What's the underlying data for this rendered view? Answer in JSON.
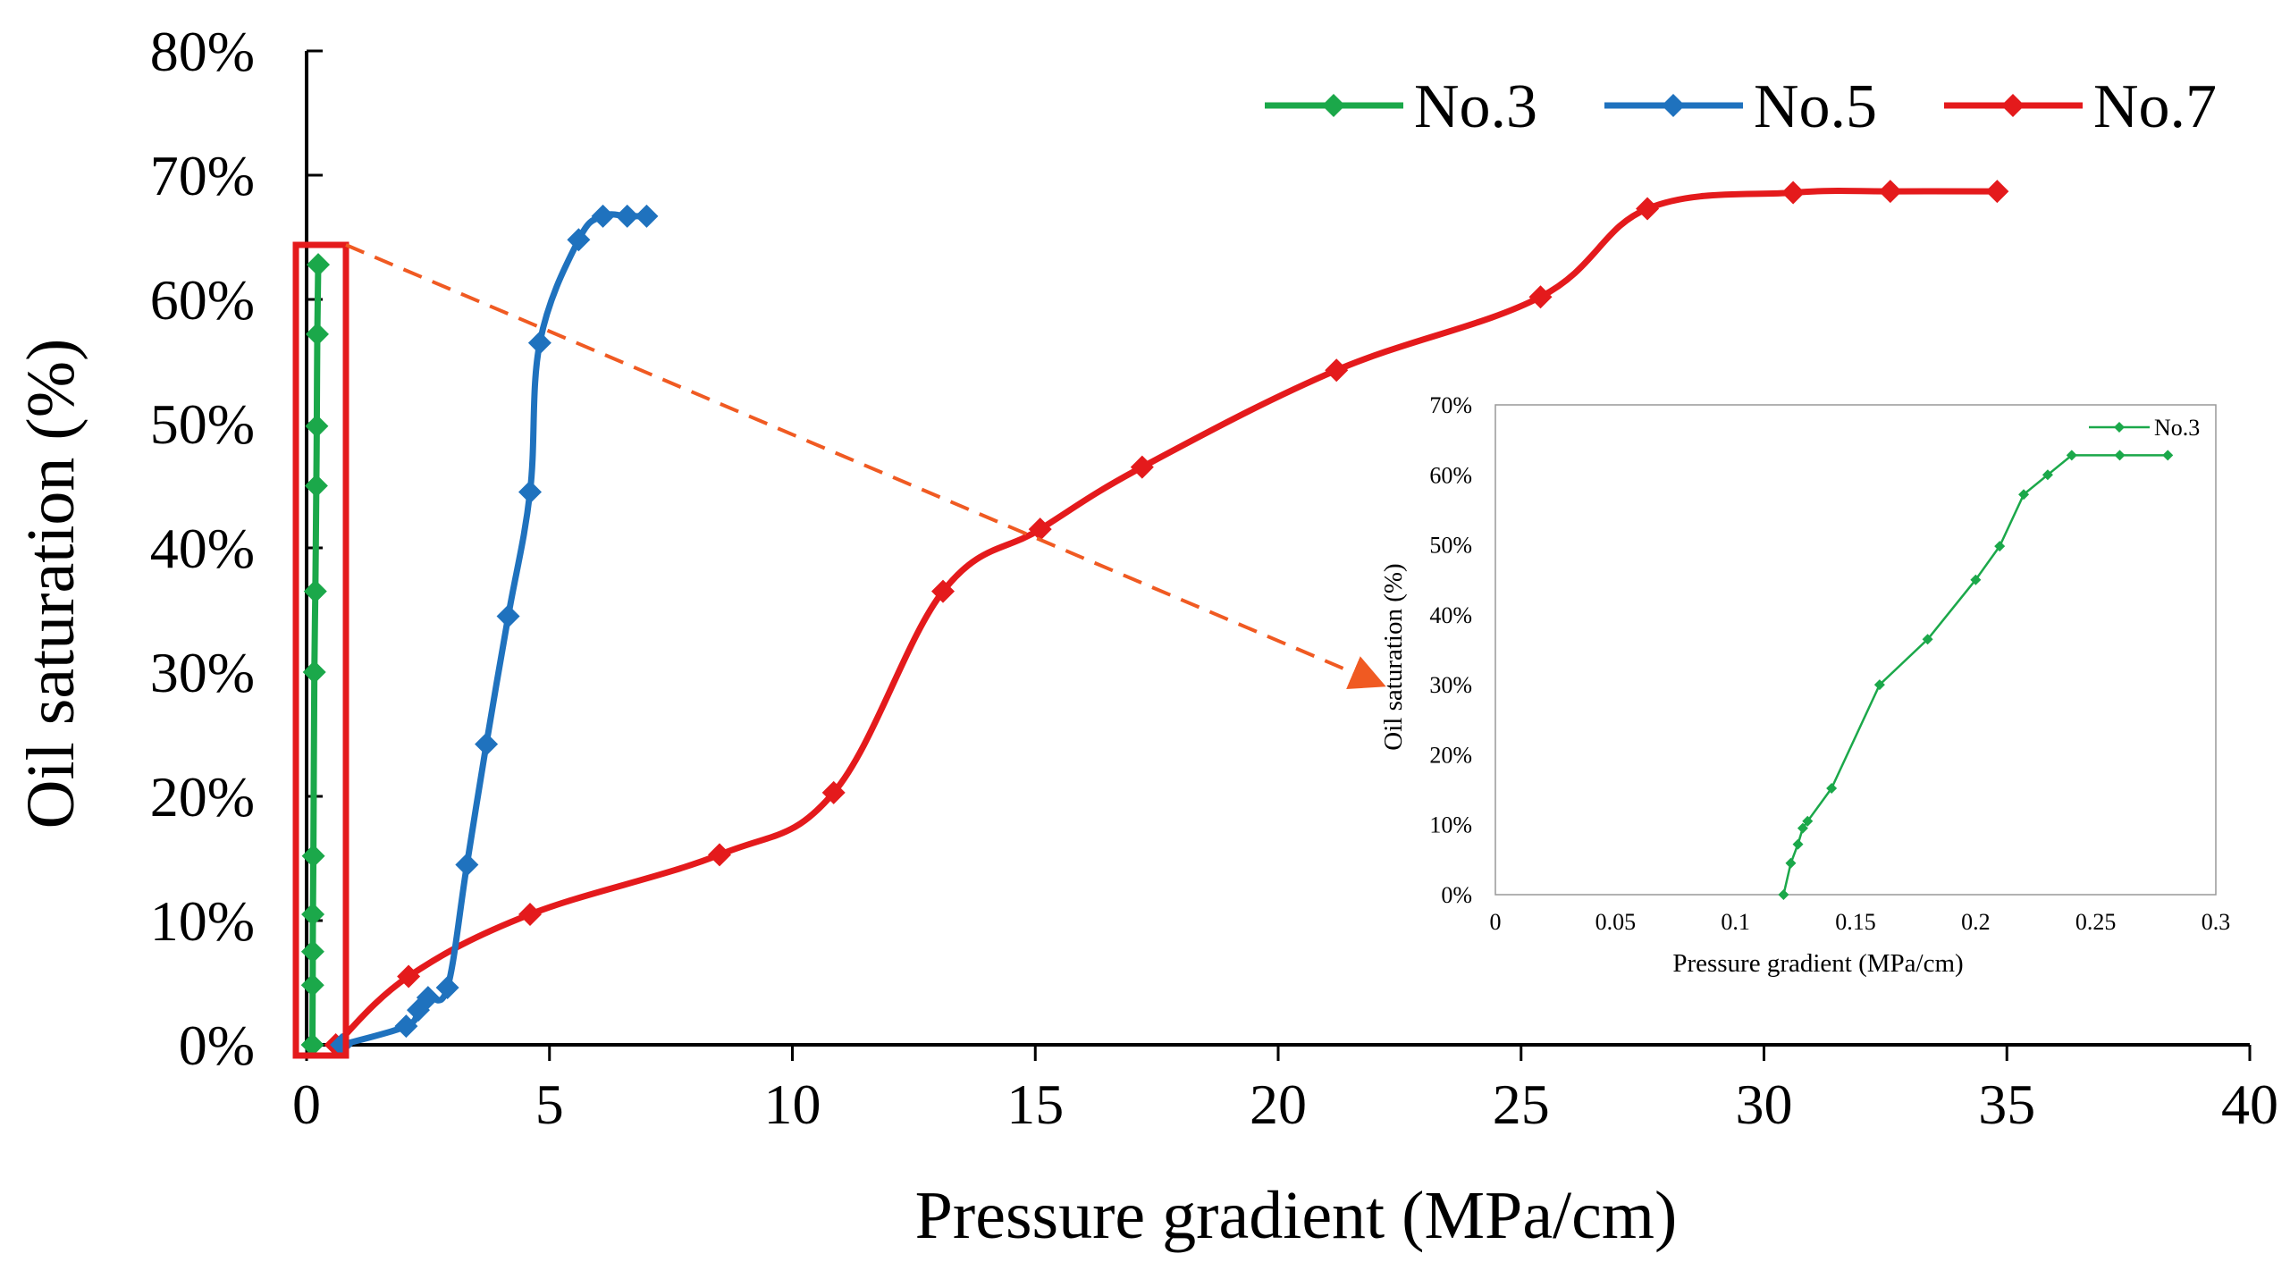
{
  "colors": {
    "no3": "#1BA84A",
    "no5": "#1F72BE",
    "no7": "#E41A1C",
    "highlight": "#E41A1C",
    "arrow": "#F05A22",
    "axis": "#000000"
  },
  "chart_data": [
    {
      "type": "line",
      "role": "main",
      "xlabel": "Pressure gradient (MPa/cm)",
      "ylabel": "Oil saturation (%)",
      "xlim": [
        0,
        40
      ],
      "ylim": [
        0,
        80
      ],
      "xticks": [
        "0",
        "5",
        "10",
        "15",
        "20",
        "25",
        "30",
        "35",
        "40"
      ],
      "yticks": [
        "0%",
        "10%",
        "20%",
        "30%",
        "40%",
        "50%",
        "60%",
        "70%",
        "80%"
      ],
      "legend": {
        "position": "top-right",
        "entries": [
          "No.3",
          "No.5",
          "No.7"
        ]
      },
      "series": [
        {
          "name": "No.3",
          "color_key": "no3",
          "x": [
            0.12,
            0.125,
            0.127,
            0.13,
            0.14,
            0.16,
            0.18,
            0.2,
            0.21,
            0.22,
            0.24
          ],
          "y": [
            0,
            4.8,
            7.5,
            10.5,
            15.2,
            30,
            36.5,
            45,
            49.8,
            57.2,
            62.8
          ]
        },
        {
          "name": "No.5",
          "color_key": "no5",
          "x": [
            0.72,
            2.05,
            2.3,
            2.5,
            2.9,
            3.3,
            3.7,
            4.15,
            4.6,
            4.8,
            5.6,
            6.1,
            6.6,
            7.0
          ],
          "y": [
            0,
            1.5,
            2.8,
            3.8,
            4.6,
            14.5,
            24.2,
            34.5,
            44.5,
            56.5,
            64.8,
            66.7,
            66.7,
            66.7
          ]
        },
        {
          "name": "No.7",
          "color_key": "no7",
          "x": [
            0.6,
            2.1,
            4.6,
            8.5,
            10.85,
            13.1,
            15.1,
            17.2,
            21.2,
            25.4,
            27.6,
            30.6,
            32.6,
            34.8
          ],
          "y": [
            0,
            5.5,
            10.5,
            15.3,
            20.3,
            36.5,
            41.5,
            46.5,
            54.3,
            60.2,
            67.3,
            68.6,
            68.7,
            68.7
          ]
        }
      ]
    },
    {
      "type": "line",
      "role": "inset",
      "xlabel": "Pressure gradient (MPa/cm)",
      "ylabel": "Oil saturation (%)",
      "xlim": [
        0,
        0.3
      ],
      "ylim": [
        0,
        70
      ],
      "xticks": [
        "0",
        "0.05",
        "0.1",
        "0.15",
        "0.2",
        "0.25",
        "0.3"
      ],
      "yticks": [
        "0%",
        "10%",
        "20%",
        "30%",
        "40%",
        "50%",
        "60%",
        "70%"
      ],
      "legend": {
        "position": "top-right",
        "entries": [
          "No.3"
        ]
      },
      "series": [
        {
          "name": "No.3",
          "color_key": "no3",
          "x": [
            0.12,
            0.123,
            0.126,
            0.128,
            0.13,
            0.14,
            0.16,
            0.18,
            0.2,
            0.21,
            0.22,
            0.23,
            0.24,
            0.26,
            0.28
          ],
          "y": [
            0,
            4.5,
            7.2,
            9.5,
            10.5,
            15.2,
            30,
            36.5,
            45,
            49.8,
            57.2,
            60,
            62.8,
            62.8,
            62.8
          ]
        }
      ]
    }
  ]
}
